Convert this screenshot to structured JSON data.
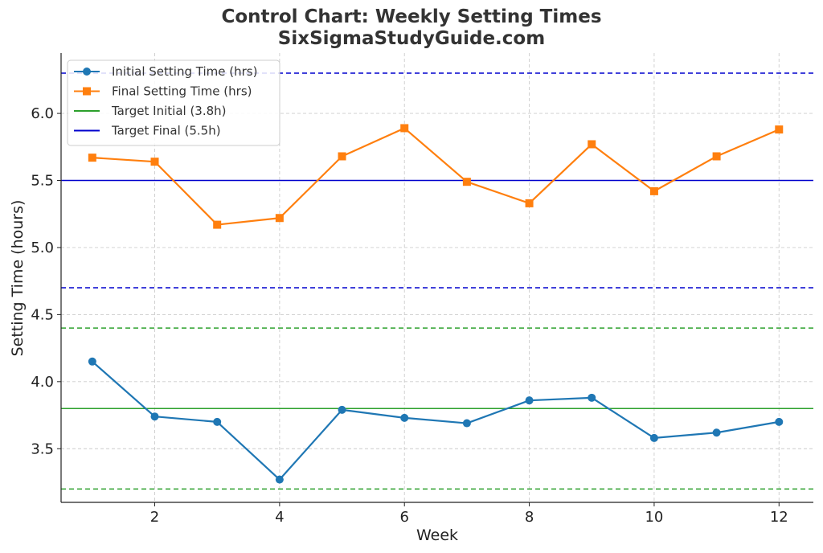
{
  "chart_data": {
    "type": "line",
    "title": "Control Chart: Weekly Setting Times",
    "subtitle": "SixSigmaStudyGuide.com",
    "xlabel": "Week",
    "ylabel": "Setting Time (hours)",
    "xlim": [
      0.5,
      12.55
    ],
    "ylim": [
      3.1,
      6.45
    ],
    "xticks": [
      2,
      4,
      6,
      8,
      10,
      12
    ],
    "yticks": [
      3.5,
      4.0,
      4.5,
      5.0,
      5.5,
      6.0
    ],
    "ytick_labels": [
      "3.5",
      "4.0",
      "4.5",
      "5.0",
      "5.5",
      "6.0"
    ],
    "grid": true,
    "legend_position": "top-left",
    "x": [
      1,
      2,
      3,
      4,
      5,
      6,
      7,
      8,
      9,
      10,
      11,
      12
    ],
    "series": [
      {
        "name": "Initial Setting Time (hrs)",
        "color": "#1f77b4",
        "marker": "circle",
        "values": [
          4.15,
          3.74,
          3.7,
          3.27,
          3.79,
          3.73,
          3.69,
          3.86,
          3.88,
          3.58,
          3.62,
          3.7
        ]
      },
      {
        "name": "Final Setting Time (hrs)",
        "color": "#ff7f0e",
        "marker": "square",
        "values": [
          5.67,
          5.64,
          5.17,
          5.22,
          5.68,
          5.89,
          5.49,
          5.33,
          5.77,
          5.42,
          5.68,
          5.88
        ]
      }
    ],
    "reference_lines": [
      {
        "name": "Target Initial (3.8h)",
        "y": 3.8,
        "color": "#2ca02c",
        "style": "solid",
        "in_legend": true
      },
      {
        "name": "Target Final (5.5h)",
        "y": 5.5,
        "color": "#0000cd",
        "style": "solid",
        "in_legend": true
      },
      {
        "y": 4.4,
        "color": "#2ca02c",
        "style": "dashed",
        "in_legend": false
      },
      {
        "y": 3.2,
        "color": "#2ca02c",
        "style": "dashed",
        "in_legend": false
      },
      {
        "y": 6.3,
        "color": "#0000cd",
        "style": "dashed",
        "in_legend": false
      },
      {
        "y": 4.7,
        "color": "#0000cd",
        "style": "dashed",
        "in_legend": false
      }
    ]
  }
}
